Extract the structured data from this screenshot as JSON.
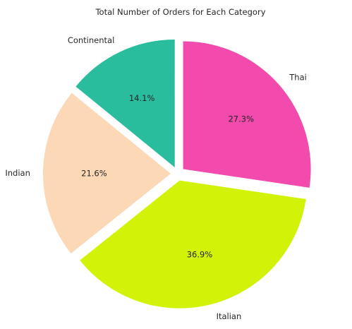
{
  "chart_data": {
    "type": "pie",
    "title": "Total Number of Orders for Each Category",
    "categories": [
      "Thai",
      "Italian",
      "Indian",
      "Continental"
    ],
    "values": [
      27.3,
      36.9,
      21.6,
      14.1
    ],
    "value_labels": [
      "27.3%",
      "36.9%",
      "21.6%",
      "14.1%"
    ],
    "colors": [
      "#f24aad",
      "#d2f207",
      "#fdd8b7",
      "#29bc9d"
    ],
    "start_angle_deg": 90,
    "direction": "clockwise",
    "exploded": true,
    "legend": "none"
  }
}
